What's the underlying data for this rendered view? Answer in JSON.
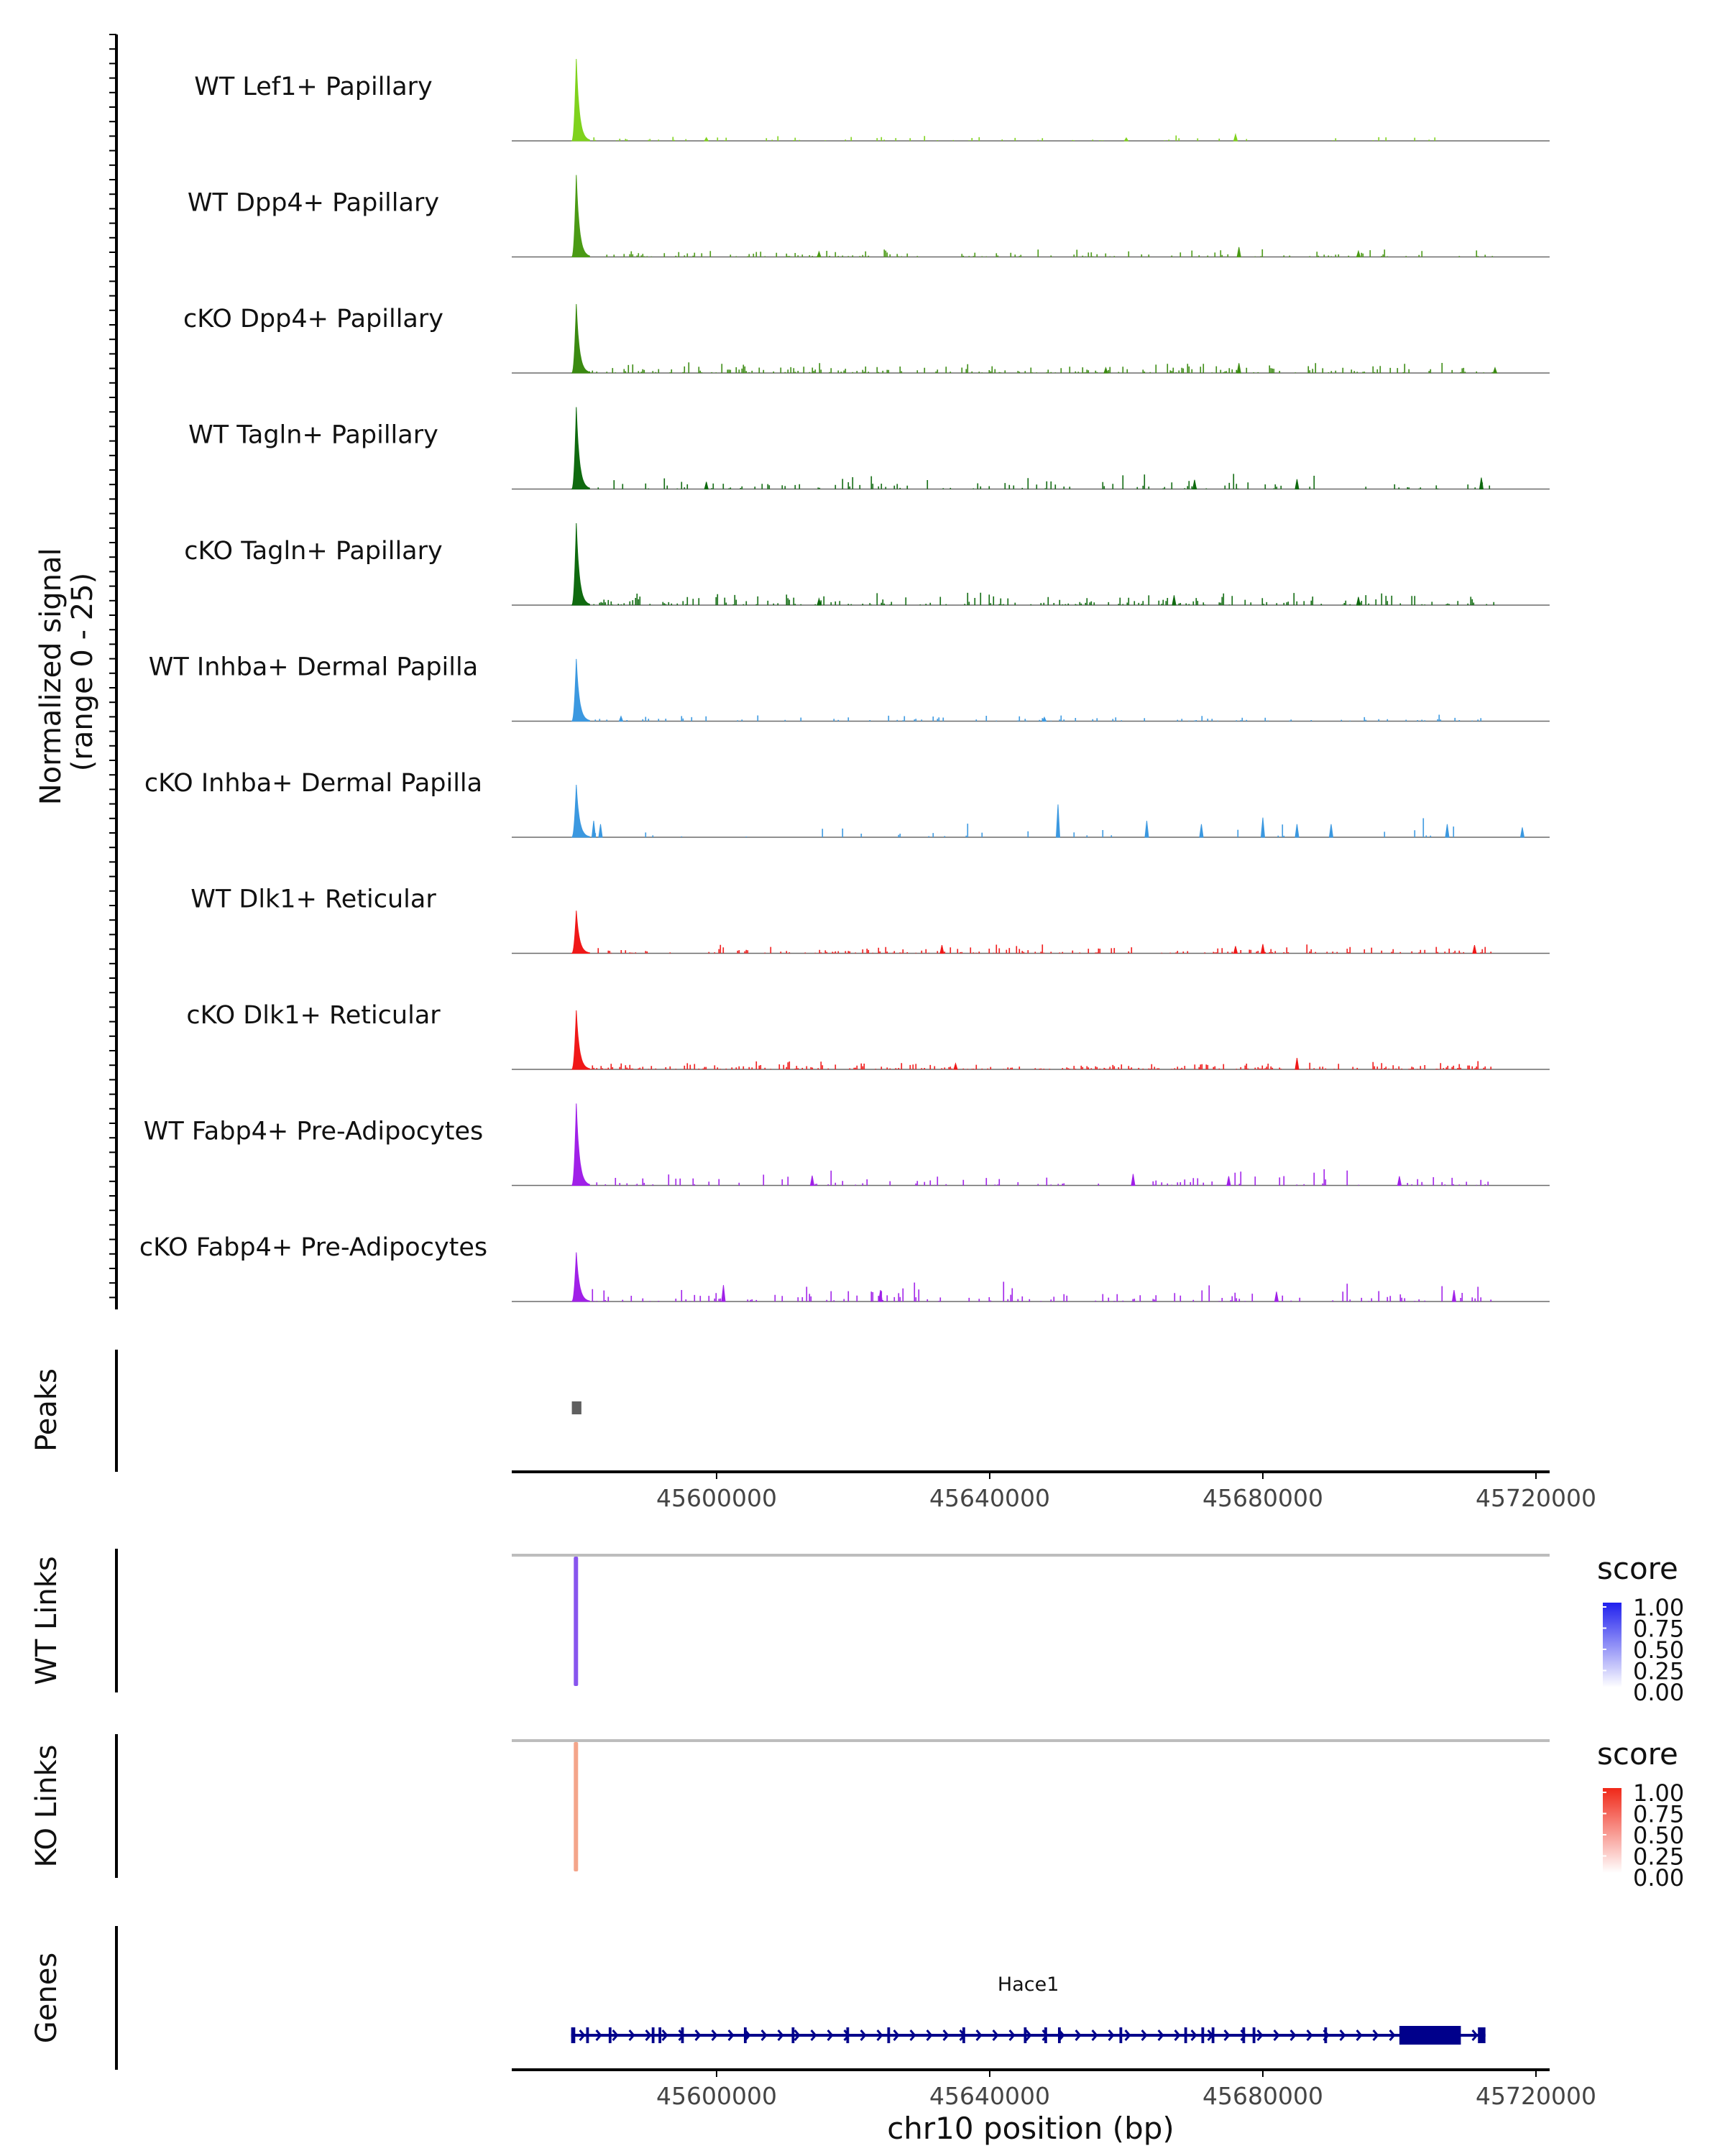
{
  "chart_data": {
    "type": "area",
    "title": "",
    "region": {
      "chrom": "chr10",
      "start": 45570000,
      "end": 45722000
    },
    "signal_panel": {
      "ylabel_line1": "Normalized signal",
      "ylabel_line2": "(range 0 - 25)",
      "ylim": [
        0,
        25
      ],
      "main_peak": {
        "start": 45578800,
        "end": 45581400
      },
      "tracks": [
        {
          "name": "WT Lef1+ Papillary",
          "color": "#7fd21c",
          "peak_height": 25.0,
          "noise": 0.7,
          "density": 0.1,
          "seed": 11,
          "extras": [
            [
              45676000,
              2.0
            ],
            [
              45598500,
              1.0
            ],
            [
              45660000,
              0.9
            ]
          ]
        },
        {
          "name": "WT Dpp4+ Papillary",
          "color": "#4a9a14",
          "peak_height": 25.0,
          "noise": 1.2,
          "density": 0.18,
          "seed": 23,
          "extras": [
            [
              45676500,
              3.0
            ],
            [
              45694000,
              1.8
            ],
            [
              45615000,
              1.6
            ]
          ]
        },
        {
          "name": "cKO Dpp4+ Papillary",
          "color": "#3a8a10",
          "peak_height": 21.0,
          "noise": 1.5,
          "density": 0.3,
          "seed": 37,
          "extras": [
            [
              45676500,
              3.0
            ],
            [
              45657000,
              1.6
            ],
            [
              45714000,
              1.6
            ]
          ]
        },
        {
          "name": "WT Tagln+ Papillary",
          "color": "#0f6a0f",
          "peak_height": 25.0,
          "noise": 2.2,
          "density": 0.18,
          "seed": 41,
          "extras": [
            [
              45712000,
              3.5
            ],
            [
              45685000,
              3.0
            ],
            [
              45670000,
              2.8
            ],
            [
              45598500,
              2.2
            ]
          ]
        },
        {
          "name": "cKO Tagln+ Papillary",
          "color": "#0f6a0f",
          "peak_height": 25.0,
          "noise": 2.0,
          "density": 0.28,
          "seed": 53,
          "extras": [
            [
              45667000,
              3.0
            ],
            [
              45694000,
              2.5
            ],
            [
              45615000,
              2.0
            ]
          ]
        },
        {
          "name": "WT Inhba+ Dermal Papilla",
          "color": "#3b98e0",
          "peak_height": 19.0,
          "noise": 1.0,
          "density": 0.16,
          "seed": 61,
          "extras": [
            [
              45586000,
              1.5
            ],
            [
              45648000,
              1.2
            ]
          ]
        },
        {
          "name": "cKO Inhba+ Dermal Papilla",
          "color": "#3b98e0",
          "peak_height": 16.0,
          "noise": 3.0,
          "density": 0.06,
          "seed": 73,
          "extras": [
            [
              45650000,
              10.0
            ],
            [
              45582000,
              5.0
            ],
            [
              45583000,
              4.0
            ],
            [
              45663000,
              5.0
            ],
            [
              45671000,
              4.0
            ],
            [
              45680000,
              6.0
            ],
            [
              45685000,
              4.0
            ],
            [
              45690000,
              4.0
            ],
            [
              45707000,
              4.0
            ],
            [
              45718000,
              3.0
            ]
          ]
        },
        {
          "name": "WT Dlk1+ Reticular",
          "color": "#f01818",
          "peak_height": 13.0,
          "noise": 1.3,
          "density": 0.26,
          "seed": 83,
          "extras": [
            [
              45633000,
              2.5
            ],
            [
              45680000,
              2.8
            ],
            [
              45676000,
              2.2
            ],
            [
              45711000,
              2.5
            ]
          ]
        },
        {
          "name": "cKO Dlk1+ Reticular",
          "color": "#f01818",
          "peak_height": 18.0,
          "noise": 1.1,
          "density": 0.36,
          "seed": 97,
          "extras": [
            [
              45685000,
              3.5
            ],
            [
              45635000,
              1.8
            ]
          ]
        },
        {
          "name": "WT Fabp4+ Pre-Adipocytes",
          "color": "#a020e8",
          "peak_height": 25.0,
          "noise": 2.3,
          "density": 0.16,
          "seed": 101,
          "extras": [
            [
              45661000,
              3.5
            ],
            [
              45614000,
              3.0
            ],
            [
              45700000,
              2.8
            ],
            [
              45675000,
              2.8
            ]
          ]
        },
        {
          "name": "cKO Fabp4+ Pre-Adipocytes",
          "color": "#a020e8",
          "peak_height": 15.0,
          "noise": 2.8,
          "density": 0.2,
          "seed": 113,
          "extras": [
            [
              45601000,
              5.0
            ],
            [
              45624000,
              3.5
            ],
            [
              45682000,
              3.0
            ],
            [
              45708000,
              3.5
            ]
          ]
        }
      ]
    },
    "peaks_panel": {
      "label": "Peaks",
      "peaks": [
        {
          "start": 45578800,
          "end": 45580200,
          "color": "#606060"
        }
      ]
    },
    "axis": {
      "ticks": [
        45600000,
        45640000,
        45680000,
        45720000
      ],
      "tick_labels": [
        "45600000",
        "45640000",
        "45680000",
        "45720000"
      ],
      "xlabel": "chr10 position (bp)"
    },
    "links_panels": [
      {
        "label": "WT Links",
        "links": [
          {
            "start": 45579400,
            "end": 45579400,
            "score": 0.72
          }
        ],
        "legend": {
          "title": "score",
          "labels": [
            "1.00",
            "0.75",
            "0.50",
            "0.25",
            "0.00"
          ],
          "low_color": "#ffffff",
          "high_color": "#2020ee",
          "mark_color": "#8855ee"
        }
      },
      {
        "label": "KO Links",
        "links": [
          {
            "start": 45579400,
            "end": 45579400,
            "score": 0.45
          }
        ],
        "legend": {
          "title": "score",
          "labels": [
            "1.00",
            "0.75",
            "0.50",
            "0.25",
            "0.00"
          ],
          "low_color": "#ffffff",
          "high_color": "#f02818",
          "mark_color": "#f4a58a"
        }
      }
    ],
    "genes_panel": {
      "label": "Genes",
      "gene": {
        "name": "Hace1",
        "strand": "+",
        "start": 45578700,
        "end": 45712600,
        "color": "#00008b"
      },
      "exons": [
        [
          45578700,
          45579300
        ],
        [
          45580900,
          45581300
        ],
        [
          45584200,
          45584600
        ],
        [
          45590500,
          45590900
        ],
        [
          45591500,
          45591900
        ],
        [
          45594800,
          45595200
        ],
        [
          45604000,
          45604400
        ],
        [
          45611000,
          45611400
        ],
        [
          45619000,
          45619400
        ],
        [
          45625000,
          45625400
        ],
        [
          45636000,
          45636400
        ],
        [
          45645000,
          45645400
        ],
        [
          45648000,
          45648400
        ],
        [
          45650000,
          45650400
        ],
        [
          45659000,
          45659400
        ],
        [
          45668500,
          45668900
        ],
        [
          45671000,
          45671400
        ],
        [
          45672500,
          45672900
        ],
        [
          45677000,
          45677400
        ],
        [
          45678500,
          45678900
        ],
        [
          45689000,
          45689400
        ],
        [
          45700000,
          45709000
        ],
        [
          45711500,
          45712600
        ]
      ]
    }
  }
}
